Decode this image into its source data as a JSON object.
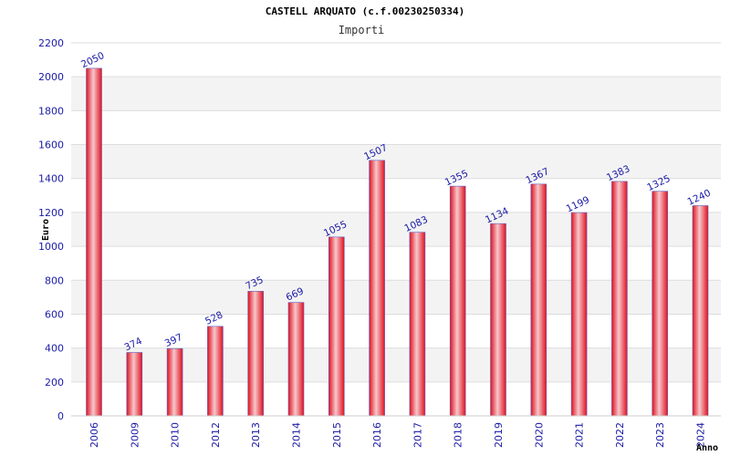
{
  "chart_data": {
    "type": "bar",
    "title": "CASTELL ARQUATO (c.f.00230250334)",
    "subtitle": "Importi",
    "xlabel": "Anno",
    "ylabel": "Euro",
    "ylim": [
      0,
      2200
    ],
    "ytick_step": 200,
    "grid": true,
    "categories": [
      "2006",
      "2009",
      "2010",
      "2012",
      "2013",
      "2014",
      "2015",
      "2016",
      "2017",
      "2018",
      "2019",
      "2020",
      "2021",
      "2022",
      "2023",
      "2024"
    ],
    "values": [
      2050,
      374,
      397,
      528,
      735,
      669,
      1055,
      1507,
      1083,
      1355,
      1134,
      1367,
      1199,
      1383,
      1325,
      1240
    ],
    "colors": {
      "bar_edge": "#e0101e",
      "bar_highlight": "#f7c8cc",
      "bar_outline": "#6060c0",
      "band": "#f3f3f3",
      "gridline": "#dddddd",
      "text": "#1a1aa6"
    }
  }
}
